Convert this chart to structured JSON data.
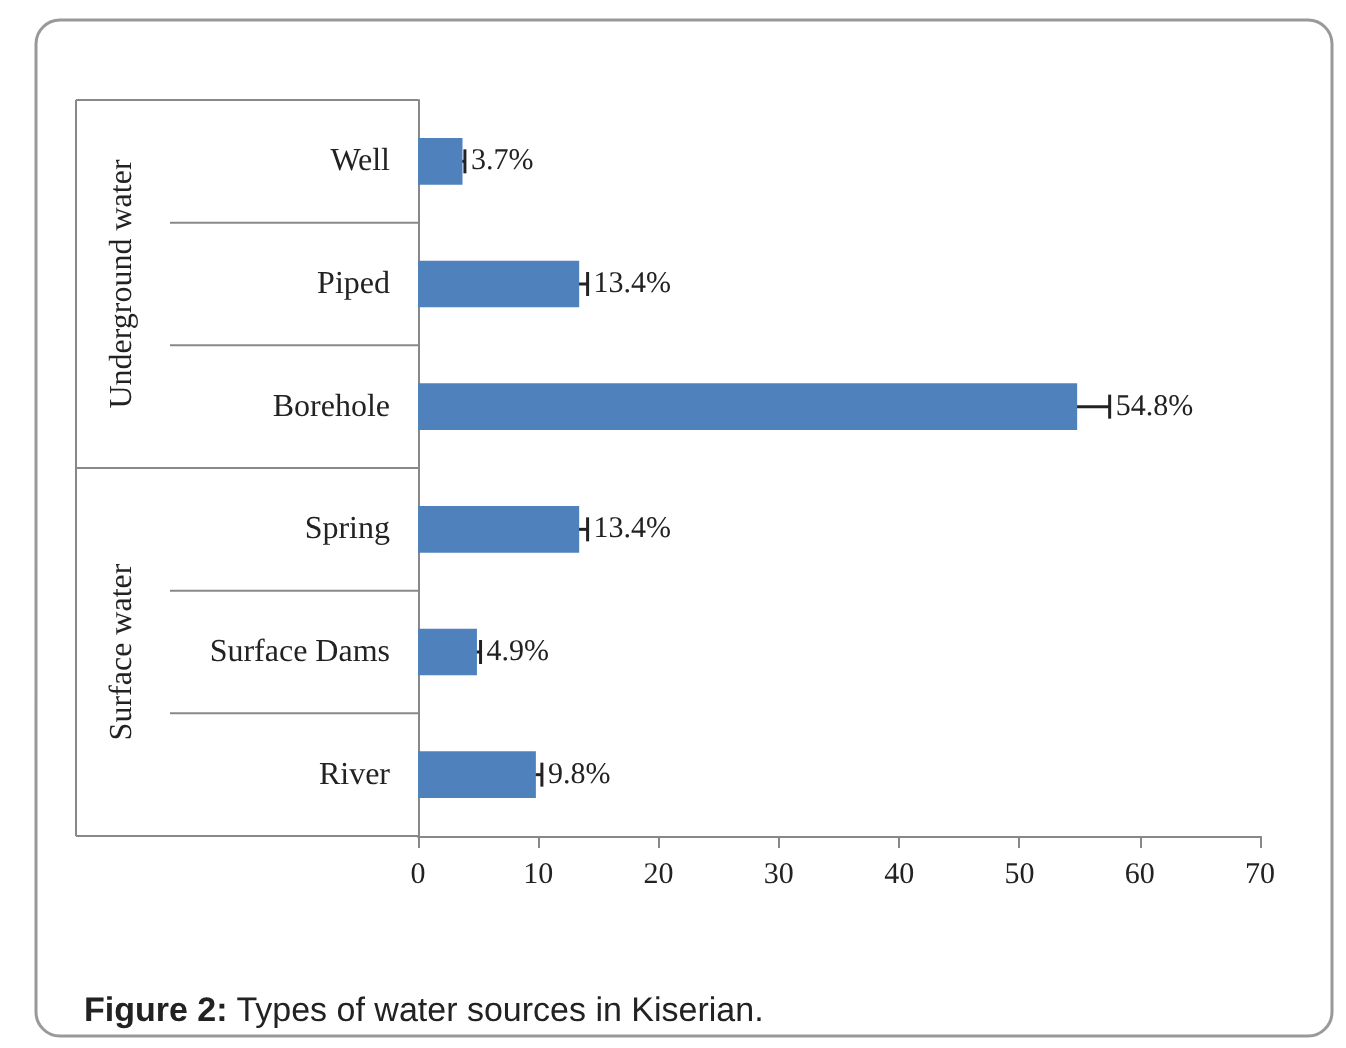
{
  "chart_data": {
    "type": "bar",
    "orientation": "horizontal",
    "title": "Figure 2: Types of water sources in Kiserian.",
    "categories": [
      "Well",
      "Piped",
      "Borehole",
      "Spring",
      "Surface Dams",
      "River"
    ],
    "values": [
      3.7,
      13.4,
      54.8,
      13.4,
      4.9,
      9.8
    ],
    "errors": [
      0.2,
      0.7,
      2.7,
      0.7,
      0.3,
      0.5
    ],
    "value_labels": [
      "3.7%",
      "13.4%",
      "54.8%",
      "13.4%",
      "4.9%",
      "9.8%"
    ],
    "color": "#4f81bd",
    "xlim": [
      0,
      70
    ],
    "xticks": [
      0,
      10,
      20,
      30,
      40,
      50,
      60,
      70
    ],
    "annotations": [
      "Underground water",
      "Surface water"
    ],
    "grid": false
  }
}
